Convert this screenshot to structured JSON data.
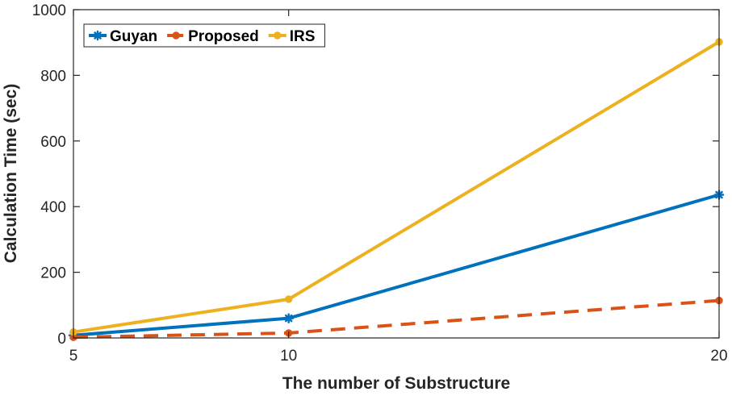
{
  "chart_data": {
    "type": "line",
    "xlabel": "The number of Substructure",
    "ylabel": "Calculation Time (sec)",
    "xlim": [
      5,
      20
    ],
    "ylim": [
      0,
      1000
    ],
    "x_ticks": [
      "5",
      "10",
      "20"
    ],
    "y_ticks": [
      "0",
      "200",
      "400",
      "600",
      "800",
      "1000"
    ],
    "grid": false,
    "legend_position": "top-left",
    "x": [
      5,
      10,
      20
    ],
    "series": [
      {
        "name": "Guyan",
        "values": [
          8,
          60,
          436
        ],
        "color": "#0072BD",
        "line_style": "solid",
        "marker": "asterisk"
      },
      {
        "name": "Proposed",
        "values": [
          2,
          15,
          114
        ],
        "color": "#D95319",
        "line_style": "dashed",
        "marker": "circle"
      },
      {
        "name": "IRS",
        "values": [
          18,
          118,
          902
        ],
        "color": "#EDB120",
        "line_style": "solid",
        "marker": "circle"
      }
    ]
  }
}
